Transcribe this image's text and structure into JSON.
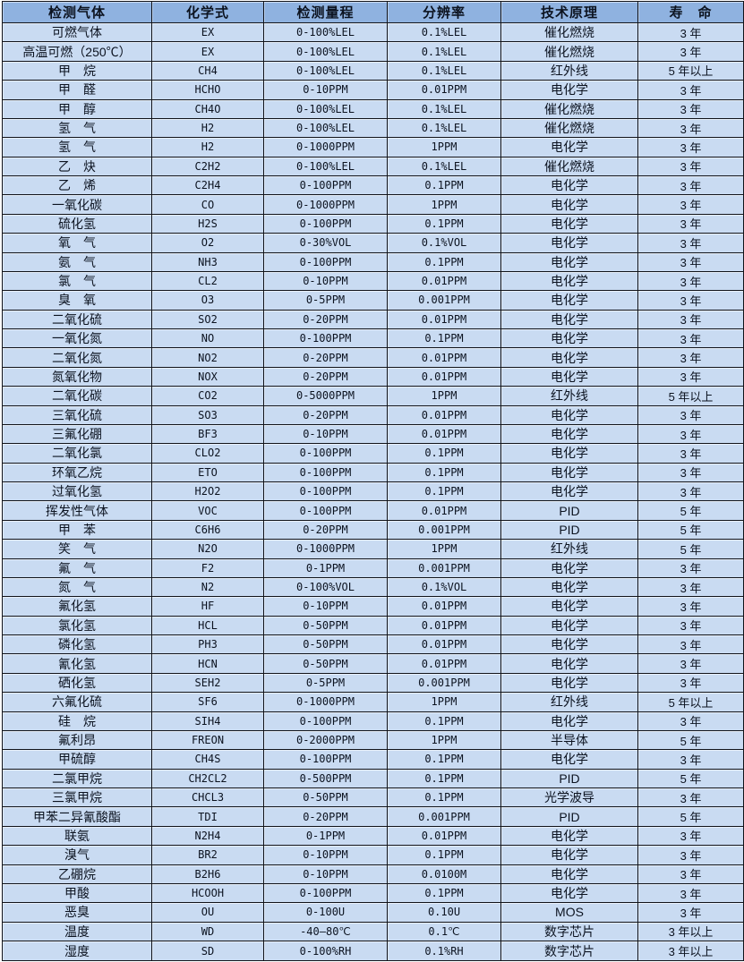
{
  "colors": {
    "header_bg": "#8fb2e0",
    "row_bg": "#c9dbf2",
    "border": "#10131a",
    "text": "#0c1320"
  },
  "table": {
    "columns": [
      "检测气体",
      "化学式",
      "检测量程",
      "分辨率",
      "技术原理",
      "寿　命"
    ],
    "rows": [
      [
        "可燃气体",
        "EX",
        "0-100%LEL",
        "0.1%LEL",
        "催化燃烧",
        "3 年"
      ],
      [
        "高温可燃（250℃）",
        "EX",
        "0-100%LEL",
        "0.1%LEL",
        "催化燃烧",
        "3 年"
      ],
      [
        "甲　烷",
        "CH4",
        "0-100%LEL",
        "0.1%LEL",
        "红外线",
        "5 年以上"
      ],
      [
        "甲　醛",
        "HCHO",
        "0-10PPM",
        "0.01PPM",
        "电化学",
        "3 年"
      ],
      [
        "甲　醇",
        "CH4O",
        "0-100%LEL",
        "0.1%LEL",
        "催化燃烧",
        "3 年"
      ],
      [
        "氢　气",
        "H2",
        "0-100%LEL",
        "0.1%LEL",
        "催化燃烧",
        "3 年"
      ],
      [
        "氢　气",
        "H2",
        "0-1000PPM",
        "1PPM",
        "电化学",
        "3 年"
      ],
      [
        "乙　炔",
        "C2H2",
        "0-100%LEL",
        "0.1%LEL",
        "催化燃烧",
        "3 年"
      ],
      [
        "乙　烯",
        "C2H4",
        "0-100PPM",
        "0.1PPM",
        "电化学",
        "3 年"
      ],
      [
        "一氧化碳",
        "CO",
        "0-1000PPM",
        "1PPM",
        "电化学",
        "3 年"
      ],
      [
        "硫化氢",
        "H2S",
        "0-100PPM",
        "0.1PPM",
        "电化学",
        "3 年"
      ],
      [
        "氧　气",
        "O2",
        "0-30%VOL",
        "0.1%VOL",
        "电化学",
        "3 年"
      ],
      [
        "氨　气",
        "NH3",
        "0-100PPM",
        "0.1PPM",
        "电化学",
        "3 年"
      ],
      [
        "氯　气",
        "CL2",
        "0-10PPM",
        "0.01PPM",
        "电化学",
        "3 年"
      ],
      [
        "臭　氧",
        "O3",
        "0-5PPM",
        "0.001PPM",
        "电化学",
        "3 年"
      ],
      [
        "二氧化硫",
        "SO2",
        "0-20PPM",
        "0.01PPM",
        "电化学",
        "3 年"
      ],
      [
        "一氧化氮",
        "NO",
        "0-100PPM",
        "0.1PPM",
        "电化学",
        "3 年"
      ],
      [
        "二氧化氮",
        "NO2",
        "0-20PPM",
        "0.01PPM",
        "电化学",
        "3 年"
      ],
      [
        "氮氧化物",
        "NOX",
        "0-20PPM",
        "0.01PPM",
        "电化学",
        "3 年"
      ],
      [
        "二氧化碳",
        "CO2",
        "0-5000PPM",
        "1PPM",
        "红外线",
        "5 年以上"
      ],
      [
        "三氧化硫",
        "SO3",
        "0-20PPM",
        "0.01PPM",
        "电化学",
        "3 年"
      ],
      [
        "三氟化硼",
        "BF3",
        "0-10PPM",
        "0.01PPM",
        "电化学",
        "3 年"
      ],
      [
        "二氧化氯",
        "CLO2",
        "0-100PPM",
        "0.1PPM",
        "电化学",
        "3 年"
      ],
      [
        "环氧乙烷",
        "ETO",
        "0-100PPM",
        "0.1PPM",
        "电化学",
        "3 年"
      ],
      [
        "过氧化氢",
        "H2O2",
        "0-100PPM",
        "0.1PPM",
        "电化学",
        "3 年"
      ],
      [
        "挥发性气体",
        "VOC",
        "0-100PPM",
        "0.01PPM",
        "PID",
        "5 年"
      ],
      [
        "甲　苯",
        "C6H6",
        "0-20PPM",
        "0.001PPM",
        "PID",
        "5 年"
      ],
      [
        "笑　气",
        "N2O",
        "0-1000PPM",
        "1PPM",
        "红外线",
        "5 年"
      ],
      [
        "氟　气",
        "F2",
        "0-1PPM",
        "0.001PPM",
        "电化学",
        "3 年"
      ],
      [
        "氮　气",
        "N2",
        "0-100%VOL",
        "0.1%VOL",
        "电化学",
        "3 年"
      ],
      [
        "氟化氢",
        "HF",
        "0-10PPM",
        "0.01PPM",
        "电化学",
        "3 年"
      ],
      [
        "氯化氢",
        "HCL",
        "0-50PPM",
        "0.01PPM",
        "电化学",
        "3 年"
      ],
      [
        "磷化氢",
        "PH3",
        "0-50PPM",
        "0.01PPM",
        "电化学",
        "3 年"
      ],
      [
        "氰化氢",
        "HCN",
        "0-50PPM",
        "0.01PPM",
        "电化学",
        "3 年"
      ],
      [
        "硒化氢",
        "SEH2",
        "0-5PPM",
        "0.001PPM",
        "电化学",
        "3 年"
      ],
      [
        "六氟化硫",
        "SF6",
        "0-1000PPM",
        "1PPM",
        "红外线",
        "5 年以上"
      ],
      [
        "硅　烷",
        "SIH4",
        "0-100PPM",
        "0.1PPM",
        "电化学",
        "3 年"
      ],
      [
        "氟利昂",
        "FREON",
        "0-2000PPM",
        "1PPM",
        "半导体",
        "5 年"
      ],
      [
        "甲硫醇",
        "CH4S",
        "0-100PPM",
        "0.1PPM",
        "电化学",
        "3 年"
      ],
      [
        "二氯甲烷",
        "CH2CL2",
        "0-500PPM",
        "0.1PPM",
        "PID",
        "5 年"
      ],
      [
        "三氯甲烷",
        "CHCL3",
        "0-50PPM",
        "0.1PPM",
        "光学波导",
        "3 年"
      ],
      [
        "甲苯二异氰酸酯",
        "TDI",
        "0-20PPM",
        "0.001PPM",
        "PID",
        "5 年"
      ],
      [
        "联氨",
        "N2H4",
        "0-1PPM",
        "0.01PPM",
        "电化学",
        "3 年"
      ],
      [
        "溴气",
        "BR2",
        "0-10PPM",
        "0.1PPM",
        "电化学",
        "3 年"
      ],
      [
        "乙硼烷",
        "B2H6",
        "0-10PPM",
        "0.0100M",
        "电化学",
        "3 年"
      ],
      [
        "甲酸",
        "HCOOH",
        "0-100PPM",
        "0.1PPM",
        "电化学",
        "3 年"
      ],
      [
        "恶臭",
        "OU",
        "0-100U",
        "0.10U",
        "MOS",
        "3 年"
      ],
      [
        "温度",
        "WD",
        "-40—80℃",
        "0.1℃",
        "数字芯片",
        "3 年以上"
      ],
      [
        "湿度",
        "SD",
        "0-100%RH",
        "0.1%RH",
        "数字芯片",
        "3 年以上"
      ]
    ]
  }
}
